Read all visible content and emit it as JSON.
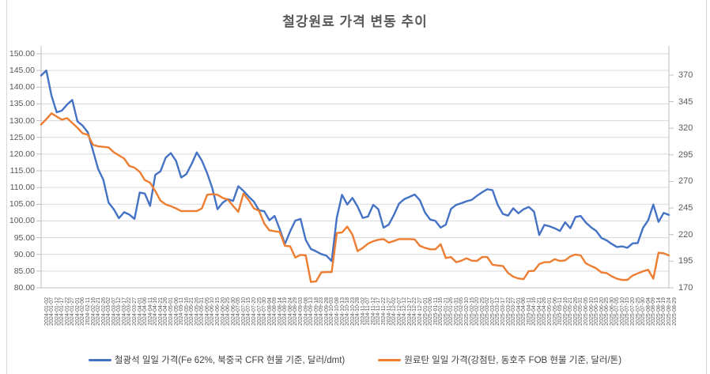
{
  "chart_data": {
    "type": "line",
    "title": "철강원료 가격 변동 추이",
    "grid": true,
    "legend_position": "bottom",
    "left_axis": {
      "min": 80,
      "max": 150,
      "step": 5,
      "tick_labels": [
        "150.00",
        "145.00",
        "140.00",
        "135.00",
        "130.00",
        "125.00",
        "120.00",
        "115.00",
        "110.00",
        "105.00",
        "100.00",
        "95.00",
        "90.00",
        "85.00",
        "80.00"
      ]
    },
    "right_axis": {
      "min": 170,
      "max": 390,
      "step": 25,
      "tick_labels": [
        "370",
        "345",
        "320",
        "295",
        "270",
        "245",
        "220",
        "195",
        "170"
      ]
    },
    "x": [
      "2024-01-02",
      "2024-01-07",
      "2024-01-12",
      "2024-01-17",
      "2024-01-22",
      "2024-01-27",
      "2024-02-01",
      "2024-02-06",
      "2024-02-11",
      "2024-02-16",
      "2024-02-21",
      "2024-02-26",
      "2024-03-02",
      "2024-03-07",
      "2024-03-12",
      "2024-03-17",
      "2024-03-22",
      "2024-03-27",
      "2024-04-01",
      "2024-04-06",
      "2024-04-11",
      "2024-04-16",
      "2024-04-21",
      "2024-04-26",
      "2024-05-01",
      "2024-05-06",
      "2024-05-11",
      "2024-05-16",
      "2024-05-21",
      "2024-05-26",
      "2024-05-31",
      "2024-06-05",
      "2024-06-10",
      "2024-06-15",
      "2024-06-20",
      "2024-06-25",
      "2024-06-30",
      "2024-07-05",
      "2024-07-10",
      "2024-07-15",
      "2024-07-20",
      "2024-07-25",
      "2024-07-30",
      "2024-08-04",
      "2024-08-09",
      "2024-08-14",
      "2024-08-19",
      "2024-08-24",
      "2024-08-29",
      "2024-09-03",
      "2024-09-08",
      "2024-09-13",
      "2024-09-18",
      "2024-09-23",
      "2024-09-28",
      "2024-10-03",
      "2024-10-08",
      "2024-10-13",
      "2024-10-18",
      "2024-10-23",
      "2024-10-28",
      "2024-11-02",
      "2024-11-07",
      "2024-11-12",
      "2024-11-17",
      "2024-11-22",
      "2024-11-27",
      "2024-12-02",
      "2024-12-07",
      "2024-12-12",
      "2024-12-17",
      "2024-12-22",
      "2024-12-27",
      "2025-01-01",
      "2025-01-06",
      "2025-01-11",
      "2025-01-16",
      "2025-01-21",
      "2025-01-26",
      "2025-01-31",
      "2025-02-05",
      "2025-02-10",
      "2025-02-15",
      "2025-02-20",
      "2025-02-25",
      "2025-03-02",
      "2025-03-07",
      "2025-03-12",
      "2025-03-17",
      "2025-03-22",
      "2025-03-27",
      "2025-04-01",
      "2025-04-06",
      "2025-04-11",
      "2025-04-16",
      "2025-04-21",
      "2025-04-26",
      "2025-05-01",
      "2025-05-06",
      "2025-05-11",
      "2025-05-16",
      "2025-05-21",
      "2025-05-26",
      "2025-05-31",
      "2025-06-05",
      "2025-06-10",
      "2025-06-15",
      "2025-06-20",
      "2025-06-25",
      "2025-06-30",
      "2025-07-05",
      "2025-07-10",
      "2025-07-15",
      "2025-07-20",
      "2025-07-25",
      "2025-07-30",
      "2025-08-04",
      "2025-08-09",
      "2025-08-14",
      "2025-08-19",
      "2025-08-24",
      "2025-08-29"
    ],
    "series": [
      {
        "name": "철광석 일일 가격(Fe 62%, 북중국 CFR 현물 기준, 달러/dmt)",
        "axis": "left",
        "color": "#4472C4",
        "values": [
          143.5,
          145.0,
          137.5,
          132.5,
          133.0,
          134.8,
          136.2,
          129.8,
          128.5,
          126.5,
          121.0,
          115.5,
          112.3,
          105.5,
          103.5,
          100.8,
          102.6,
          101.9,
          100.6,
          108.5,
          108.2,
          104.5,
          113.8,
          114.8,
          118.9,
          120.3,
          118.0,
          113.0,
          114.0,
          117.0,
          120.5,
          118.0,
          114.3,
          109.8,
          103.5,
          105.5,
          106.5,
          106.0,
          110.4,
          109.0,
          107.3,
          105.8,
          103.2,
          102.9,
          100.2,
          101.5,
          97.5,
          93.1,
          96.9,
          100.1,
          100.6,
          94.3,
          91.6,
          90.9,
          90.1,
          89.6,
          88.0,
          101.0,
          107.8,
          104.9,
          106.9,
          104.3,
          100.9,
          101.3,
          104.8,
          103.5,
          98.0,
          98.9,
          101.8,
          105.2,
          106.5,
          107.2,
          107.9,
          106.2,
          102.5,
          100.4,
          100.0,
          98.0,
          98.9,
          103.6,
          104.8,
          105.3,
          105.9,
          106.3,
          107.5,
          108.6,
          109.5,
          109.2,
          104.8,
          102.1,
          101.6,
          103.8,
          102.3,
          103.5,
          104.2,
          102.8,
          95.8,
          98.8,
          98.4,
          97.8,
          97.0,
          99.6,
          97.8,
          101.2,
          101.5,
          99.5,
          98.1,
          97.0,
          94.9,
          94.2,
          93.1,
          92.2,
          92.4,
          92.0,
          93.3,
          93.4,
          97.9,
          100.2,
          104.9,
          99.7,
          102.4,
          101.8
        ]
      },
      {
        "name": "원료탄 일일 가격(강점탄, 동호주 FOB 현물 기준, 달러/톤)",
        "axis": "right",
        "color": "#ED7D31",
        "values": [
          323.5,
          328.5,
          334.0,
          331.0,
          328.0,
          329.5,
          325.0,
          320.5,
          315.2,
          314.0,
          304.5,
          303.0,
          302.5,
          302.0,
          297.5,
          294.5,
          291.5,
          284.5,
          283.0,
          279.0,
          271.3,
          268.8,
          261.0,
          252.0,
          248.4,
          246.8,
          244.6,
          242.2,
          242.2,
          242.2,
          242.2,
          244.6,
          257.5,
          258.0,
          257.5,
          254.5,
          253.0,
          247.0,
          241.5,
          258.5,
          252.5,
          244.8,
          242.5,
          230.5,
          224.0,
          223.2,
          222.5,
          209.5,
          209.0,
          198.5,
          201.0,
          200.5,
          175.5,
          176.0,
          184.5,
          184.8,
          184.8,
          221.5,
          222.0,
          227.5,
          220.0,
          204.5,
          207.5,
          211.5,
          213.8,
          215.2,
          215.8,
          212.5,
          214.0,
          215.8,
          215.8,
          215.8,
          215.5,
          209.5,
          207.5,
          206.2,
          206.2,
          211.0,
          198.0,
          198.9,
          194.1,
          195.5,
          197.7,
          195.5,
          195.3,
          198.9,
          198.9,
          191.7,
          191.0,
          190.5,
          184.0,
          180.5,
          178.8,
          178.2,
          185.7,
          186.0,
          192.3,
          194.1,
          194.1,
          196.9,
          195.3,
          195.8,
          199.5,
          201.3,
          200.5,
          193.0,
          190.5,
          188.3,
          184.5,
          183.8,
          180.8,
          178.5,
          177.4,
          177.4,
          181.5,
          183.5,
          185.5,
          187.0,
          178.6,
          203.0,
          202.5,
          200.5
        ]
      }
    ],
    "colors": {
      "gridline": "#d9d9d9",
      "axis_line": "#bfbfbf",
      "text": "#595959"
    }
  }
}
